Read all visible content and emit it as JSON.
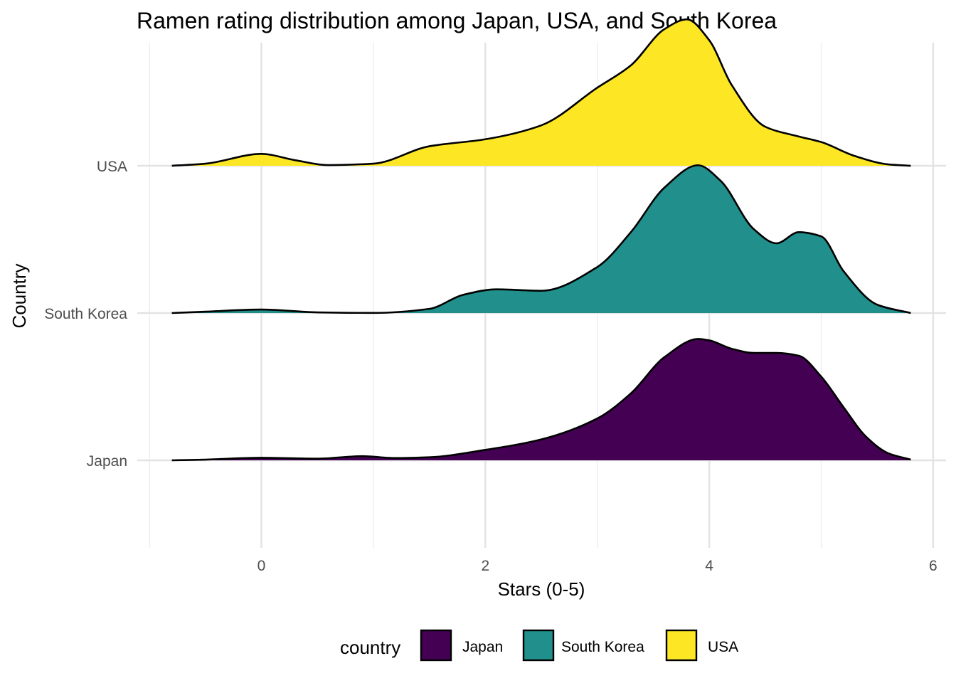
{
  "chart_data": {
    "type": "ridgeline",
    "title": "Ramen rating distribution among Japan, USA, and South Korea",
    "xlabel": "Stars (0-5)",
    "ylabel": "Country",
    "xlim": [
      -1,
      6
    ],
    "x_ticks": [
      0,
      2,
      4,
      6
    ],
    "x_minor_ticks": [
      -1,
      1,
      3,
      5
    ],
    "grid": true,
    "legend": {
      "title": "country",
      "position": "bottom",
      "entries": [
        "Japan",
        "South Korea",
        "USA"
      ]
    },
    "categories": [
      "Japan",
      "South Korea",
      "USA"
    ],
    "series": [
      {
        "name": "Japan",
        "color": "#440154",
        "x": [
          -0.8,
          -0.5,
          0.0,
          0.5,
          0.9,
          1.2,
          1.5,
          2.0,
          2.5,
          3.0,
          3.3,
          3.6,
          3.9,
          4.0,
          4.2,
          4.4,
          4.6,
          4.8,
          5.0,
          5.2,
          5.4,
          5.6,
          5.8
        ],
        "y": [
          0.0,
          0.005,
          0.018,
          0.012,
          0.03,
          0.016,
          0.022,
          0.075,
          0.15,
          0.3,
          0.48,
          0.74,
          0.87,
          0.86,
          0.8,
          0.77,
          0.77,
          0.75,
          0.6,
          0.38,
          0.17,
          0.05,
          0.005
        ]
      },
      {
        "name": "South Korea",
        "color": "#21908c",
        "x": [
          -0.8,
          -0.5,
          0.0,
          0.5,
          1.0,
          1.5,
          1.8,
          2.1,
          2.5,
          3.0,
          3.3,
          3.6,
          3.9,
          4.1,
          4.4,
          4.6,
          4.8,
          5.0,
          5.2,
          5.5,
          5.8
        ],
        "y": [
          0.0,
          0.01,
          0.025,
          0.005,
          0.001,
          0.03,
          0.13,
          0.17,
          0.16,
          0.33,
          0.58,
          0.9,
          1.06,
          0.95,
          0.6,
          0.5,
          0.58,
          0.55,
          0.3,
          0.06,
          0.0
        ]
      },
      {
        "name": "USA",
        "color": "#fde725",
        "x": [
          -0.8,
          -0.5,
          0.0,
          0.3,
          0.6,
          1.0,
          1.5,
          2.0,
          2.5,
          3.0,
          3.3,
          3.6,
          3.8,
          4.0,
          4.2,
          4.5,
          4.8,
          5.0,
          5.3,
          5.6,
          5.8
        ],
        "y": [
          0.0,
          0.015,
          0.085,
          0.04,
          0.005,
          0.015,
          0.14,
          0.19,
          0.29,
          0.56,
          0.72,
          0.98,
          1.05,
          0.9,
          0.58,
          0.28,
          0.21,
          0.17,
          0.07,
          0.01,
          0.0
        ]
      }
    ]
  }
}
